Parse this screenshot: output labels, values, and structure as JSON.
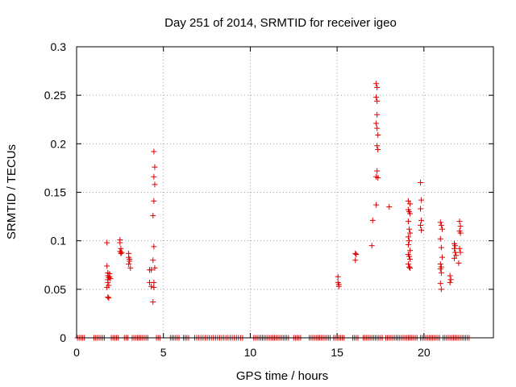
{
  "chart_data": {
    "type": "scatter",
    "title": "Day 251 of 2014, SRMTID for receiver igeo",
    "xlabel": "GPS time / hours",
    "ylabel": "SRMTID / TECUs",
    "xlim": [
      0,
      24
    ],
    "ylim": [
      0,
      0.3
    ],
    "xticks": [
      0,
      5,
      10,
      15,
      20
    ],
    "xtick_labels": [
      "0",
      "5",
      "10",
      "15",
      "20"
    ],
    "yticks": [
      0,
      0.05,
      0.1,
      0.15,
      0.2,
      0.25,
      0.3
    ],
    "ytick_labels": [
      "0",
      "0.05",
      "0.1",
      "0.15",
      "0.2",
      "0.25",
      "0.3"
    ],
    "grid": true,
    "marker": "+",
    "colors": {
      "points": "#dd0000",
      "grid": "#a0a0a0",
      "axes": "#000000"
    },
    "series": [
      {
        "name": "SRMTID",
        "points": [
          [
            1.75,
            0.098
          ],
          [
            1.75,
            0.074
          ],
          [
            1.8,
            0.067
          ],
          [
            1.8,
            0.064
          ],
          [
            1.85,
            0.062
          ],
          [
            1.8,
            0.06
          ],
          [
            1.8,
            0.057
          ],
          [
            1.85,
            0.054
          ],
          [
            1.75,
            0.052
          ],
          [
            1.8,
            0.042
          ],
          [
            1.85,
            0.041
          ],
          [
            1.9,
            0.066
          ],
          [
            1.9,
            0.063
          ],
          [
            1.95,
            0.061
          ],
          [
            2.5,
            0.101
          ],
          [
            2.5,
            0.098
          ],
          [
            2.55,
            0.092
          ],
          [
            2.5,
            0.089
          ],
          [
            2.55,
            0.087
          ],
          [
            2.6,
            0.088
          ],
          [
            3.0,
            0.087
          ],
          [
            3.0,
            0.083
          ],
          [
            3.05,
            0.081
          ],
          [
            3.05,
            0.079
          ],
          [
            3.0,
            0.076
          ],
          [
            3.1,
            0.072
          ],
          [
            4.2,
            0.07
          ],
          [
            4.3,
            0.07
          ],
          [
            4.2,
            0.057
          ],
          [
            4.3,
            0.053
          ],
          [
            4.45,
            0.192
          ],
          [
            4.5,
            0.176
          ],
          [
            4.45,
            0.166
          ],
          [
            4.5,
            0.158
          ],
          [
            4.45,
            0.141
          ],
          [
            4.4,
            0.126
          ],
          [
            4.45,
            0.094
          ],
          [
            4.4,
            0.08
          ],
          [
            4.5,
            0.072
          ],
          [
            4.45,
            0.057
          ],
          [
            4.45,
            0.052
          ],
          [
            4.4,
            0.037
          ],
          [
            15.05,
            0.063
          ],
          [
            15.05,
            0.057
          ],
          [
            15.1,
            0.055
          ],
          [
            15.1,
            0.053
          ],
          [
            16.05,
            0.087
          ],
          [
            16.1,
            0.086
          ],
          [
            16.05,
            0.08
          ],
          [
            17.05,
            0.121
          ],
          [
            17.0,
            0.095
          ],
          [
            17.25,
            0.262
          ],
          [
            17.3,
            0.258
          ],
          [
            17.25,
            0.248
          ],
          [
            17.3,
            0.244
          ],
          [
            17.3,
            0.23
          ],
          [
            17.25,
            0.221
          ],
          [
            17.3,
            0.216
          ],
          [
            17.35,
            0.209
          ],
          [
            17.3,
            0.198
          ],
          [
            17.35,
            0.194
          ],
          [
            17.3,
            0.172
          ],
          [
            17.25,
            0.166
          ],
          [
            17.35,
            0.165
          ],
          [
            17.25,
            0.137
          ],
          [
            18.0,
            0.135
          ],
          [
            19.1,
            0.141
          ],
          [
            19.2,
            0.138
          ],
          [
            19.1,
            0.132
          ],
          [
            19.15,
            0.13
          ],
          [
            19.2,
            0.128
          ],
          [
            19.1,
            0.12
          ],
          [
            19.15,
            0.112
          ],
          [
            19.2,
            0.108
          ],
          [
            19.1,
            0.104
          ],
          [
            19.15,
            0.1
          ],
          [
            19.1,
            0.096
          ],
          [
            19.2,
            0.09
          ],
          [
            19.1,
            0.086
          ],
          [
            19.15,
            0.084
          ],
          [
            19.2,
            0.081
          ],
          [
            19.1,
            0.076
          ],
          [
            19.15,
            0.073
          ],
          [
            19.2,
            0.072
          ],
          [
            19.8,
            0.16
          ],
          [
            19.85,
            0.142
          ],
          [
            19.8,
            0.133
          ],
          [
            19.85,
            0.121
          ],
          [
            19.8,
            0.116
          ],
          [
            19.85,
            0.111
          ],
          [
            20.95,
            0.119
          ],
          [
            21.0,
            0.116
          ],
          [
            21.05,
            0.112
          ],
          [
            20.95,
            0.102
          ],
          [
            21.0,
            0.093
          ],
          [
            21.05,
            0.083
          ],
          [
            20.95,
            0.076
          ],
          [
            21.0,
            0.073
          ],
          [
            20.95,
            0.071
          ],
          [
            21.0,
            0.067
          ],
          [
            20.95,
            0.056
          ],
          [
            21.0,
            0.05
          ],
          [
            21.5,
            0.064
          ],
          [
            21.55,
            0.06
          ],
          [
            21.5,
            0.057
          ],
          [
            21.75,
            0.097
          ],
          [
            21.8,
            0.095
          ],
          [
            21.75,
            0.092
          ],
          [
            21.8,
            0.088
          ],
          [
            21.85,
            0.085
          ],
          [
            21.75,
            0.082
          ],
          [
            22.05,
            0.12
          ],
          [
            22.1,
            0.115
          ],
          [
            22.05,
            0.11
          ],
          [
            22.1,
            0.108
          ],
          [
            22.05,
            0.092
          ],
          [
            22.1,
            0.088
          ],
          [
            22.0,
            0.077
          ]
        ],
        "zero_bands": [
          [
            0.05,
            0.5,
            0.1
          ],
          [
            1.0,
            1.6,
            0.1
          ],
          [
            2.0,
            2.45,
            0.1
          ],
          [
            2.75,
            2.95,
            0.1
          ],
          [
            3.2,
            4.15,
            0.1
          ],
          [
            4.6,
            4.8,
            0.1
          ],
          [
            5.4,
            5.9,
            0.1
          ],
          [
            6.15,
            6.5,
            0.1
          ],
          [
            6.8,
            9.6,
            0.12
          ],
          [
            10.2,
            12.2,
            0.1
          ],
          [
            12.5,
            12.9,
            0.1
          ],
          [
            13.4,
            14.6,
            0.1
          ],
          [
            14.8,
            15.4,
            0.1
          ],
          [
            15.9,
            16.2,
            0.1
          ],
          [
            16.5,
            17.6,
            0.1
          ],
          [
            17.8,
            19.6,
            0.1
          ],
          [
            19.8,
            20.9,
            0.1
          ],
          [
            21.1,
            22.6,
            0.1
          ]
        ]
      }
    ]
  }
}
